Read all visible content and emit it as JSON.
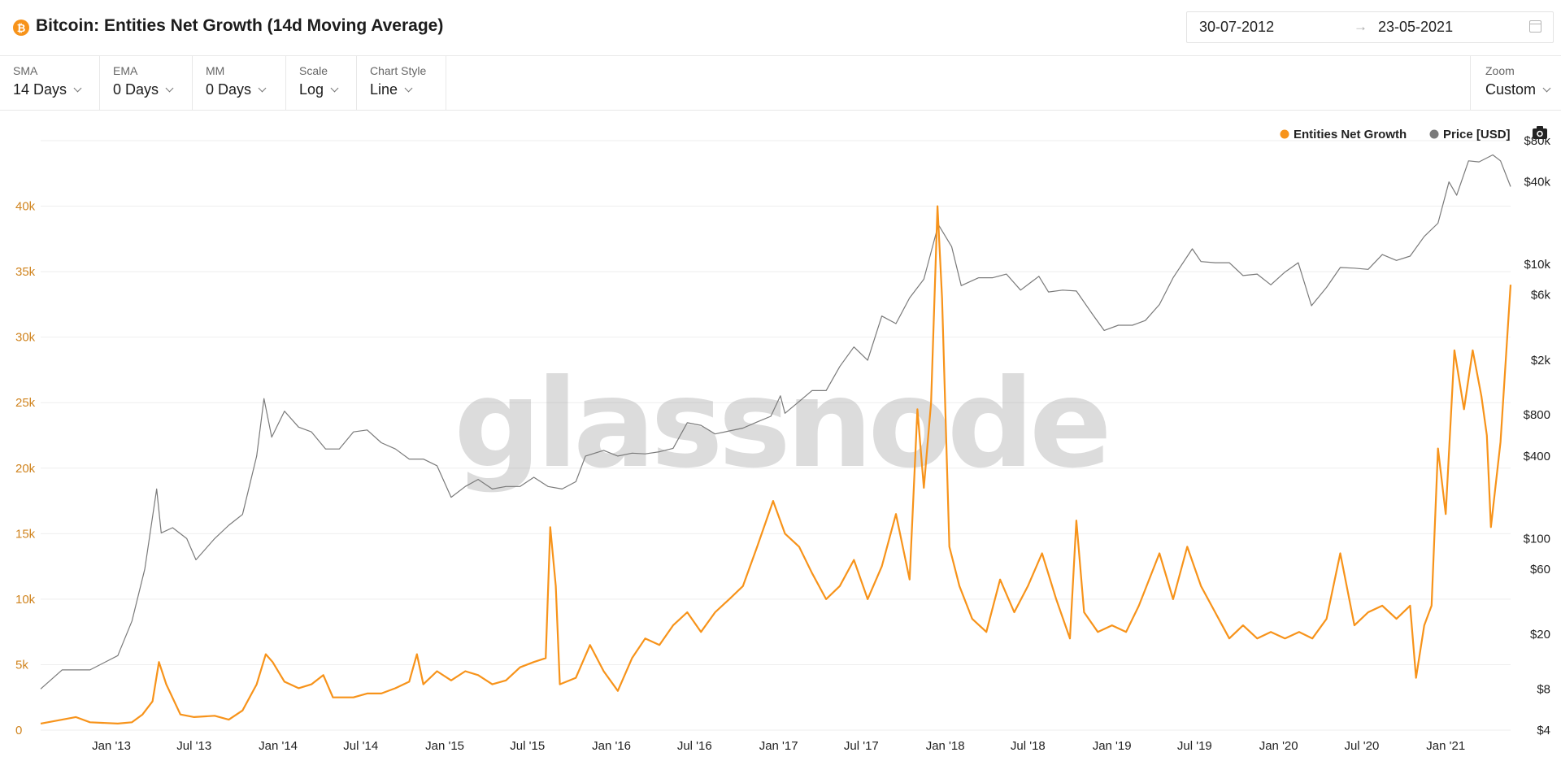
{
  "header": {
    "coin_glyph": "₿",
    "title": "Bitcoin: Entities Net Growth (14d Moving Average)",
    "date_from": "30-07-2012",
    "date_arrow": "→",
    "date_to": "23-05-2021"
  },
  "controls": {
    "sma": {
      "label": "SMA",
      "value": "14 Days"
    },
    "ema": {
      "label": "EMA",
      "value": "0 Days"
    },
    "mm": {
      "label": "MM",
      "value": "0 Days"
    },
    "scale": {
      "label": "Scale",
      "value": "Log"
    },
    "chart_style": {
      "label": "Chart Style",
      "value": "Line"
    },
    "zoom": {
      "label": "Zoom",
      "value": "Custom"
    }
  },
  "colors": {
    "entities": "#f7931a",
    "price": "#7a7a7a",
    "grid": "#eeeeee"
  },
  "watermark": "glassnode",
  "chart_data": {
    "type": "line",
    "x_range": [
      "2012-07-30",
      "2021-05-23"
    ],
    "x_ticks": [
      "Jan '13",
      "Jul '13",
      "Jan '14",
      "Jul '14",
      "Jan '15",
      "Jul '15",
      "Jan '16",
      "Jul '16",
      "Jan '17",
      "Jul '17",
      "Jan '18",
      "Jul '18",
      "Jan '19",
      "Jul '19",
      "Jan '20",
      "Jul '20",
      "Jan '21"
    ],
    "x_tick_dates": [
      "2013-01-01",
      "2013-07-01",
      "2014-01-01",
      "2014-07-01",
      "2015-01-01",
      "2015-07-01",
      "2016-01-01",
      "2016-07-01",
      "2017-01-01",
      "2017-07-01",
      "2018-01-01",
      "2018-07-01",
      "2019-01-01",
      "2019-07-01",
      "2020-01-01",
      "2020-07-01",
      "2021-01-01"
    ],
    "y_left": {
      "scale": "linear",
      "range": [
        0,
        45000
      ],
      "ticks": [
        0,
        5000,
        10000,
        15000,
        20000,
        25000,
        30000,
        35000,
        40000
      ],
      "tick_labels": [
        "0",
        "5k",
        "10k",
        "15k",
        "20k",
        "25k",
        "30k",
        "35k",
        "40k"
      ]
    },
    "y_right": {
      "scale": "log",
      "range": [
        4,
        80000
      ],
      "ticks": [
        4,
        8,
        20,
        60,
        100,
        400,
        800,
        2000,
        6000,
        10000,
        40000,
        80000
      ],
      "tick_labels": [
        "$4",
        "$8",
        "$20",
        "$60",
        "$100",
        "$400",
        "$800",
        "$2k",
        "$6k",
        "$10k",
        "$40k",
        "$80k"
      ]
    },
    "legend_position": "top-right",
    "grid": true,
    "series": [
      {
        "name": "Entities Net Growth",
        "axis": "left",
        "points": [
          [
            "2012-07-30",
            500
          ],
          [
            "2012-09-15",
            800
          ],
          [
            "2012-10-15",
            1000
          ],
          [
            "2012-11-15",
            600
          ],
          [
            "2013-01-15",
            500
          ],
          [
            "2013-02-15",
            600
          ],
          [
            "2013-03-10",
            1200
          ],
          [
            "2013-04-01",
            2200
          ],
          [
            "2013-04-15",
            5200
          ],
          [
            "2013-05-01",
            3500
          ],
          [
            "2013-06-01",
            1200
          ],
          [
            "2013-07-01",
            1000
          ],
          [
            "2013-08-15",
            1100
          ],
          [
            "2013-09-15",
            800
          ],
          [
            "2013-10-15",
            1500
          ],
          [
            "2013-11-15",
            3500
          ],
          [
            "2013-12-05",
            5800
          ],
          [
            "2013-12-20",
            5200
          ],
          [
            "2014-01-15",
            3700
          ],
          [
            "2014-02-15",
            3200
          ],
          [
            "2014-03-15",
            3500
          ],
          [
            "2014-04-10",
            4200
          ],
          [
            "2014-05-01",
            2500
          ],
          [
            "2014-06-15",
            2500
          ],
          [
            "2014-07-15",
            2800
          ],
          [
            "2014-08-15",
            2800
          ],
          [
            "2014-09-15",
            3200
          ],
          [
            "2014-10-15",
            3700
          ],
          [
            "2014-11-01",
            5800
          ],
          [
            "2014-11-15",
            3500
          ],
          [
            "2014-12-15",
            4500
          ],
          [
            "2015-01-15",
            3800
          ],
          [
            "2015-02-15",
            4500
          ],
          [
            "2015-03-15",
            4200
          ],
          [
            "2015-04-15",
            3500
          ],
          [
            "2015-05-15",
            3800
          ],
          [
            "2015-06-15",
            4800
          ],
          [
            "2015-07-15",
            5200
          ],
          [
            "2015-08-10",
            5500
          ],
          [
            "2015-08-20",
            15500
          ],
          [
            "2015-09-01",
            11000
          ],
          [
            "2015-09-10",
            3500
          ],
          [
            "2015-10-15",
            4000
          ],
          [
            "2015-11-15",
            6500
          ],
          [
            "2015-12-15",
            4500
          ],
          [
            "2016-01-15",
            3000
          ],
          [
            "2016-02-15",
            5500
          ],
          [
            "2016-03-15",
            7000
          ],
          [
            "2016-04-15",
            6500
          ],
          [
            "2016-05-15",
            8000
          ],
          [
            "2016-06-15",
            9000
          ],
          [
            "2016-07-15",
            7500
          ],
          [
            "2016-08-15",
            9000
          ],
          [
            "2016-09-15",
            10000
          ],
          [
            "2016-10-15",
            11000
          ],
          [
            "2016-11-15",
            14000
          ],
          [
            "2016-12-20",
            17500
          ],
          [
            "2017-01-15",
            15000
          ],
          [
            "2017-02-15",
            14000
          ],
          [
            "2017-03-15",
            12000
          ],
          [
            "2017-04-15",
            10000
          ],
          [
            "2017-05-15",
            11000
          ],
          [
            "2017-06-15",
            13000
          ],
          [
            "2017-07-15",
            10000
          ],
          [
            "2017-08-15",
            12500
          ],
          [
            "2017-09-15",
            16500
          ],
          [
            "2017-10-15",
            11500
          ],
          [
            "2017-11-01",
            24500
          ],
          [
            "2017-11-15",
            18500
          ],
          [
            "2017-12-01",
            25000
          ],
          [
            "2017-12-15",
            40000
          ],
          [
            "2017-12-25",
            33000
          ],
          [
            "2018-01-10",
            14000
          ],
          [
            "2018-02-01",
            11000
          ],
          [
            "2018-03-01",
            8500
          ],
          [
            "2018-04-01",
            7500
          ],
          [
            "2018-05-01",
            11500
          ],
          [
            "2018-06-01",
            9000
          ],
          [
            "2018-07-01",
            11000
          ],
          [
            "2018-08-01",
            13500
          ],
          [
            "2018-09-01",
            10000
          ],
          [
            "2018-10-01",
            7000
          ],
          [
            "2018-10-15",
            16000
          ],
          [
            "2018-11-01",
            9000
          ],
          [
            "2018-12-01",
            7500
          ],
          [
            "2019-01-01",
            8000
          ],
          [
            "2019-02-01",
            7500
          ],
          [
            "2019-03-01",
            9500
          ],
          [
            "2019-04-15",
            13500
          ],
          [
            "2019-05-15",
            10000
          ],
          [
            "2019-06-15",
            14000
          ],
          [
            "2019-07-15",
            11000
          ],
          [
            "2019-08-15",
            9000
          ],
          [
            "2019-09-15",
            7000
          ],
          [
            "2019-10-15",
            8000
          ],
          [
            "2019-11-15",
            7000
          ],
          [
            "2019-12-15",
            7500
          ],
          [
            "2020-01-15",
            7000
          ],
          [
            "2020-02-15",
            7500
          ],
          [
            "2020-03-15",
            7000
          ],
          [
            "2020-04-15",
            8500
          ],
          [
            "2020-05-15",
            13500
          ],
          [
            "2020-06-15",
            8000
          ],
          [
            "2020-07-15",
            9000
          ],
          [
            "2020-08-15",
            9500
          ],
          [
            "2020-09-15",
            8500
          ],
          [
            "2020-10-15",
            9500
          ],
          [
            "2020-10-28",
            4000
          ],
          [
            "2020-11-15",
            8000
          ],
          [
            "2020-12-01",
            9500
          ],
          [
            "2020-12-15",
            21500
          ],
          [
            "2021-01-01",
            16500
          ],
          [
            "2021-01-20",
            29000
          ],
          [
            "2021-02-10",
            24500
          ],
          [
            "2021-03-01",
            29000
          ],
          [
            "2021-03-20",
            25500
          ],
          [
            "2021-04-01",
            22500
          ],
          [
            "2021-04-10",
            15500
          ],
          [
            "2021-05-01",
            22000
          ],
          [
            "2021-05-23",
            34000
          ]
        ]
      },
      {
        "name": "Price [USD]",
        "axis": "right",
        "points": [
          [
            "2012-07-30",
            8
          ],
          [
            "2012-09-15",
            11
          ],
          [
            "2012-11-15",
            11
          ],
          [
            "2013-01-15",
            14
          ],
          [
            "2013-02-15",
            25
          ],
          [
            "2013-03-15",
            60
          ],
          [
            "2013-04-10",
            230
          ],
          [
            "2013-04-20",
            110
          ],
          [
            "2013-05-15",
            120
          ],
          [
            "2013-06-15",
            100
          ],
          [
            "2013-07-05",
            70
          ],
          [
            "2013-08-15",
            100
          ],
          [
            "2013-09-15",
            125
          ],
          [
            "2013-10-15",
            150
          ],
          [
            "2013-11-15",
            400
          ],
          [
            "2013-12-01",
            1050
          ],
          [
            "2013-12-18",
            550
          ],
          [
            "2014-01-15",
            850
          ],
          [
            "2014-02-15",
            650
          ],
          [
            "2014-03-15",
            600
          ],
          [
            "2014-04-15",
            450
          ],
          [
            "2014-05-15",
            450
          ],
          [
            "2014-06-15",
            600
          ],
          [
            "2014-07-15",
            620
          ],
          [
            "2014-08-15",
            500
          ],
          [
            "2014-09-15",
            450
          ],
          [
            "2014-10-15",
            380
          ],
          [
            "2014-11-15",
            380
          ],
          [
            "2014-12-15",
            340
          ],
          [
            "2015-01-15",
            200
          ],
          [
            "2015-02-15",
            240
          ],
          [
            "2015-03-15",
            270
          ],
          [
            "2015-04-15",
            230
          ],
          [
            "2015-05-15",
            240
          ],
          [
            "2015-06-15",
            240
          ],
          [
            "2015-07-15",
            280
          ],
          [
            "2015-08-15",
            240
          ],
          [
            "2015-09-15",
            230
          ],
          [
            "2015-10-15",
            260
          ],
          [
            "2015-11-05",
            400
          ],
          [
            "2015-12-15",
            440
          ],
          [
            "2016-01-15",
            400
          ],
          [
            "2016-02-15",
            420
          ],
          [
            "2016-03-15",
            415
          ],
          [
            "2016-04-15",
            430
          ],
          [
            "2016-05-15",
            455
          ],
          [
            "2016-06-15",
            700
          ],
          [
            "2016-07-15",
            670
          ],
          [
            "2016-08-15",
            580
          ],
          [
            "2016-09-15",
            610
          ],
          [
            "2016-10-15",
            640
          ],
          [
            "2016-11-15",
            710
          ],
          [
            "2016-12-15",
            780
          ],
          [
            "2017-01-05",
            1100
          ],
          [
            "2017-01-15",
            820
          ],
          [
            "2017-02-15",
            1000
          ],
          [
            "2017-03-15",
            1200
          ],
          [
            "2017-04-15",
            1200
          ],
          [
            "2017-05-15",
            1800
          ],
          [
            "2017-06-15",
            2500
          ],
          [
            "2017-07-15",
            2000
          ],
          [
            "2017-08-15",
            4200
          ],
          [
            "2017-09-15",
            3700
          ],
          [
            "2017-10-15",
            5700
          ],
          [
            "2017-11-15",
            7800
          ],
          [
            "2017-12-17",
            19500
          ],
          [
            "2018-01-15",
            13500
          ],
          [
            "2018-02-05",
            7000
          ],
          [
            "2018-03-15",
            8000
          ],
          [
            "2018-04-15",
            8000
          ],
          [
            "2018-05-15",
            8500
          ],
          [
            "2018-06-15",
            6500
          ],
          [
            "2018-07-25",
            8200
          ],
          [
            "2018-08-15",
            6300
          ],
          [
            "2018-09-15",
            6500
          ],
          [
            "2018-10-15",
            6400
          ],
          [
            "2018-11-20",
            4300
          ],
          [
            "2018-12-15",
            3300
          ],
          [
            "2019-01-15",
            3600
          ],
          [
            "2019-02-15",
            3600
          ],
          [
            "2019-03-15",
            3900
          ],
          [
            "2019-04-15",
            5100
          ],
          [
            "2019-05-15",
            8000
          ],
          [
            "2019-06-26",
            13000
          ],
          [
            "2019-07-15",
            10500
          ],
          [
            "2019-08-15",
            10300
          ],
          [
            "2019-09-15",
            10300
          ],
          [
            "2019-10-15",
            8300
          ],
          [
            "2019-11-15",
            8500
          ],
          [
            "2019-12-15",
            7100
          ],
          [
            "2020-01-15",
            8800
          ],
          [
            "2020-02-13",
            10300
          ],
          [
            "2020-03-13",
            5000
          ],
          [
            "2020-04-15",
            6800
          ],
          [
            "2020-05-15",
            9500
          ],
          [
            "2020-06-15",
            9400
          ],
          [
            "2020-07-15",
            9200
          ],
          [
            "2020-08-15",
            11800
          ],
          [
            "2020-09-15",
            10700
          ],
          [
            "2020-10-15",
            11500
          ],
          [
            "2020-11-15",
            16000
          ],
          [
            "2020-12-15",
            20000
          ],
          [
            "2021-01-08",
            40000
          ],
          [
            "2021-01-25",
            32000
          ],
          [
            "2021-02-20",
            57000
          ],
          [
            "2021-03-15",
            56000
          ],
          [
            "2021-04-14",
            63000
          ],
          [
            "2021-05-01",
            57000
          ],
          [
            "2021-05-23",
            37000
          ]
        ]
      }
    ]
  }
}
